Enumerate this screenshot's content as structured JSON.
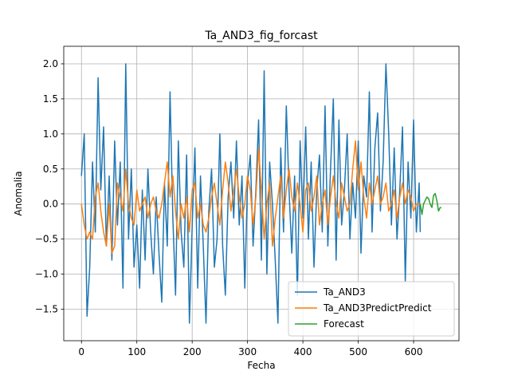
{
  "chart_data": {
    "type": "line",
    "title": "Ta_AND3_fig_forcast",
    "xlabel": "Fecha",
    "ylabel": "Anomalia",
    "xlim": [
      -32,
      682
    ],
    "ylim": [
      -1.95,
      2.25
    ],
    "x_ticks": [
      0,
      100,
      200,
      300,
      400,
      500,
      600
    ],
    "y_ticks": [
      -1.5,
      -1.0,
      -0.5,
      0.0,
      0.5,
      1.0,
      1.5,
      2.0
    ],
    "x_tick_labels": [
      "0",
      "100",
      "200",
      "300",
      "400",
      "500",
      "600"
    ],
    "y_tick_labels": [
      "−1.5",
      "−1.0",
      "−0.5",
      "0.0",
      "0.5",
      "1.0",
      "1.5",
      "2.0"
    ],
    "grid": true,
    "legend_position": "lower-right",
    "series": [
      {
        "name": "Ta_AND3",
        "color": "#1f77b4",
        "x": [
          0,
          5,
          10,
          15,
          20,
          25,
          30,
          35,
          40,
          45,
          50,
          55,
          60,
          65,
          70,
          75,
          80,
          85,
          90,
          95,
          100,
          105,
          110,
          115,
          120,
          125,
          130,
          135,
          140,
          145,
          150,
          155,
          160,
          165,
          170,
          175,
          180,
          185,
          190,
          195,
          200,
          205,
          210,
          215,
          220,
          225,
          230,
          235,
          240,
          245,
          250,
          255,
          260,
          265,
          270,
          275,
          280,
          285,
          290,
          295,
          300,
          305,
          310,
          315,
          320,
          325,
          330,
          335,
          340,
          345,
          350,
          355,
          360,
          365,
          370,
          375,
          380,
          385,
          390,
          395,
          400,
          405,
          410,
          415,
          420,
          425,
          430,
          435,
          440,
          445,
          450,
          455,
          460,
          465,
          470,
          475,
          480,
          485,
          490,
          495,
          500,
          505,
          510,
          515,
          520,
          525,
          530,
          535,
          540,
          545,
          550,
          555,
          560,
          565,
          570,
          575,
          580,
          585,
          590,
          595,
          600,
          605,
          610,
          612
        ],
        "y": [
          0.4,
          1.0,
          -1.6,
          -0.9,
          0.6,
          -0.4,
          1.8,
          0.2,
          1.1,
          -0.6,
          0.4,
          -0.8,
          0.9,
          -0.3,
          0.6,
          -1.2,
          2.0,
          -0.5,
          0.5,
          -0.9,
          -0.3,
          -1.2,
          0.2,
          -0.8,
          0.5,
          -0.4,
          -1.0,
          0.1,
          -0.7,
          -1.4,
          0.3,
          -0.6,
          1.6,
          -0.2,
          -1.3,
          0.9,
          -0.4,
          -0.9,
          0.7,
          -1.7,
          -0.3,
          0.8,
          -1.2,
          0.4,
          -0.6,
          -1.7,
          -0.1,
          0.5,
          -0.9,
          -0.5,
          1.0,
          -0.6,
          -1.3,
          0.1,
          0.6,
          -0.2,
          0.9,
          -0.3,
          0.4,
          -1.2,
          0.3,
          0.7,
          -0.6,
          0.2,
          1.2,
          -0.8,
          1.9,
          -1.0,
          0.6,
          0.0,
          -0.8,
          -1.7,
          0.8,
          -0.4,
          1.4,
          0.2,
          -0.7,
          0.4,
          -1.3,
          0.9,
          -0.2,
          1.1,
          -0.5,
          0.6,
          -0.9,
          0.2,
          0.7,
          -0.4,
          1.4,
          -0.6,
          0.5,
          1.5,
          -0.8,
          1.2,
          -0.3,
          0.2,
          1.0,
          -0.5,
          0.3,
          -0.2,
          0.9,
          -0.7,
          0.4,
          0.1,
          1.6,
          -0.4,
          0.8,
          1.3,
          -0.1,
          0.6,
          2.0,
          1.0,
          -0.3,
          0.8,
          -0.5,
          0.2,
          1.1,
          -1.1,
          0.6,
          -0.2,
          1.2,
          -0.4,
          0.3,
          -0.4
        ]
      },
      {
        "name": "Ta_AND3PredictPredict",
        "color": "#ff7f0e",
        "x": [
          0,
          5,
          10,
          15,
          20,
          25,
          30,
          35,
          40,
          45,
          50,
          55,
          60,
          65,
          70,
          75,
          80,
          85,
          90,
          95,
          100,
          105,
          110,
          115,
          120,
          125,
          130,
          135,
          140,
          145,
          150,
          155,
          160,
          165,
          170,
          175,
          180,
          185,
          190,
          195,
          200,
          205,
          210,
          215,
          220,
          225,
          230,
          235,
          240,
          245,
          250,
          255,
          260,
          265,
          270,
          275,
          280,
          285,
          290,
          295,
          300,
          305,
          310,
          315,
          320,
          325,
          330,
          335,
          340,
          345,
          350,
          355,
          360,
          365,
          370,
          375,
          380,
          385,
          390,
          395,
          400,
          405,
          410,
          415,
          420,
          425,
          430,
          435,
          440,
          445,
          450,
          455,
          460,
          465,
          470,
          475,
          480,
          485,
          490,
          495,
          500,
          505,
          510,
          515,
          520,
          525,
          530,
          535,
          540,
          545,
          550,
          555,
          560,
          565,
          570,
          575,
          580,
          585,
          590,
          595,
          600,
          605,
          610,
          612
        ],
        "y": [
          0.0,
          -0.3,
          -0.5,
          -0.4,
          -0.5,
          0.1,
          0.3,
          -0.1,
          -0.4,
          -0.6,
          0.0,
          -0.7,
          -0.6,
          0.3,
          0.1,
          -0.1,
          0.5,
          0.0,
          -0.2,
          -0.3,
          0.2,
          -0.1,
          0.0,
          0.1,
          -0.2,
          0.0,
          0.1,
          -0.1,
          -0.2,
          0.0,
          0.3,
          0.6,
          0.1,
          0.4,
          -0.1,
          -0.5,
          0.0,
          -0.2,
          0.1,
          -0.4,
          0.2,
          0.3,
          -0.2,
          0.0,
          -0.3,
          -0.4,
          -0.2,
          0.1,
          0.3,
          0.0,
          -0.3,
          0.2,
          0.6,
          0.3,
          -0.1,
          0.2,
          0.5,
          0.1,
          -0.2,
          0.0,
          0.4,
          0.2,
          -0.3,
          0.1,
          0.8,
          0.2,
          -0.5,
          0.0,
          0.3,
          -0.6,
          -0.2,
          0.1,
          0.4,
          -0.2,
          0.2,
          0.5,
          0.1,
          -0.1,
          0.3,
          0.0,
          -0.4,
          0.2,
          0.3,
          -0.1,
          0.1,
          0.4,
          -0.3,
          0.0,
          0.2,
          -0.3,
          0.1,
          0.4,
          0.0,
          -0.2,
          0.3,
          0.1,
          -0.1,
          0.0,
          0.5,
          0.9,
          0.2,
          0.6,
          0.1,
          -0.2,
          0.3,
          0.0,
          0.2,
          0.4,
          0.0,
          0.1,
          0.3,
          -0.1,
          0.0,
          0.2,
          -0.2,
          0.1,
          0.3,
          0.0,
          0.2,
          0.1,
          -0.1,
          0.0,
          0.0,
          0.0
        ]
      },
      {
        "name": "Forecast",
        "color": "#2ca02c",
        "x": [
          612,
          615,
          618,
          621,
          624,
          627,
          630,
          633,
          636,
          639,
          642,
          645,
          648,
          650
        ],
        "y": [
          0.0,
          -0.15,
          0.0,
          0.05,
          0.1,
          0.08,
          0.0,
          -0.05,
          0.12,
          0.15,
          0.05,
          -0.1,
          -0.05,
          -0.05
        ]
      }
    ]
  }
}
